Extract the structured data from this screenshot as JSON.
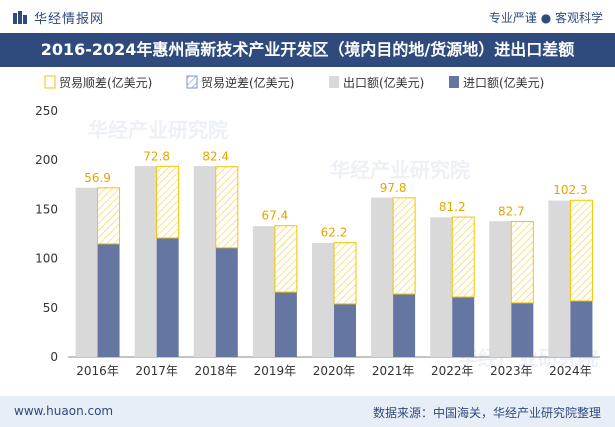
{
  "header": {
    "logo_text": "华经情报网",
    "tagline": "专业严谨 ● 客观科学"
  },
  "title": "2016-2024年惠州高新技术产业开发区（境内目的地/货源地）进出口差额",
  "footer": {
    "website": "www.huaon.com",
    "source": "数据来源：中国海关，华经产业研究院整理"
  },
  "watermark": "华经产业研究院",
  "colors": {
    "surplus": "#f5c400",
    "deficit": "#7f95c4",
    "export": "#d9d9d9",
    "import": "#6576a3",
    "header_bg": "#2f4a7d"
  },
  "chart_data": {
    "type": "bar",
    "categories": [
      "2016年",
      "2017年",
      "2018年",
      "2019年",
      "2020年",
      "2021年",
      "2022年",
      "2023年",
      "2024年"
    ],
    "series": [
      {
        "name": "贸易顺差(亿美元)",
        "values": [
          56.9,
          72.8,
          82.4,
          67.4,
          62.2,
          97.8,
          81.2,
          82.7,
          102.3
        ]
      },
      {
        "name": "贸易逆差(亿美元)",
        "values": [
          0,
          0,
          0,
          0,
          0,
          0,
          0,
          0,
          0
        ]
      },
      {
        "name": "出口额(亿美元)",
        "values": [
          172,
          194,
          194,
          133,
          116,
          162,
          142,
          138,
          159
        ]
      },
      {
        "name": "进口额(亿美元)",
        "values": [
          115,
          121,
          111,
          66,
          54,
          64,
          61,
          55,
          57
        ]
      }
    ],
    "ylim": [
      0,
      250
    ],
    "yticks": [
      0,
      50,
      100,
      150,
      200,
      250
    ],
    "legend_position": "top-left",
    "grid": false
  }
}
